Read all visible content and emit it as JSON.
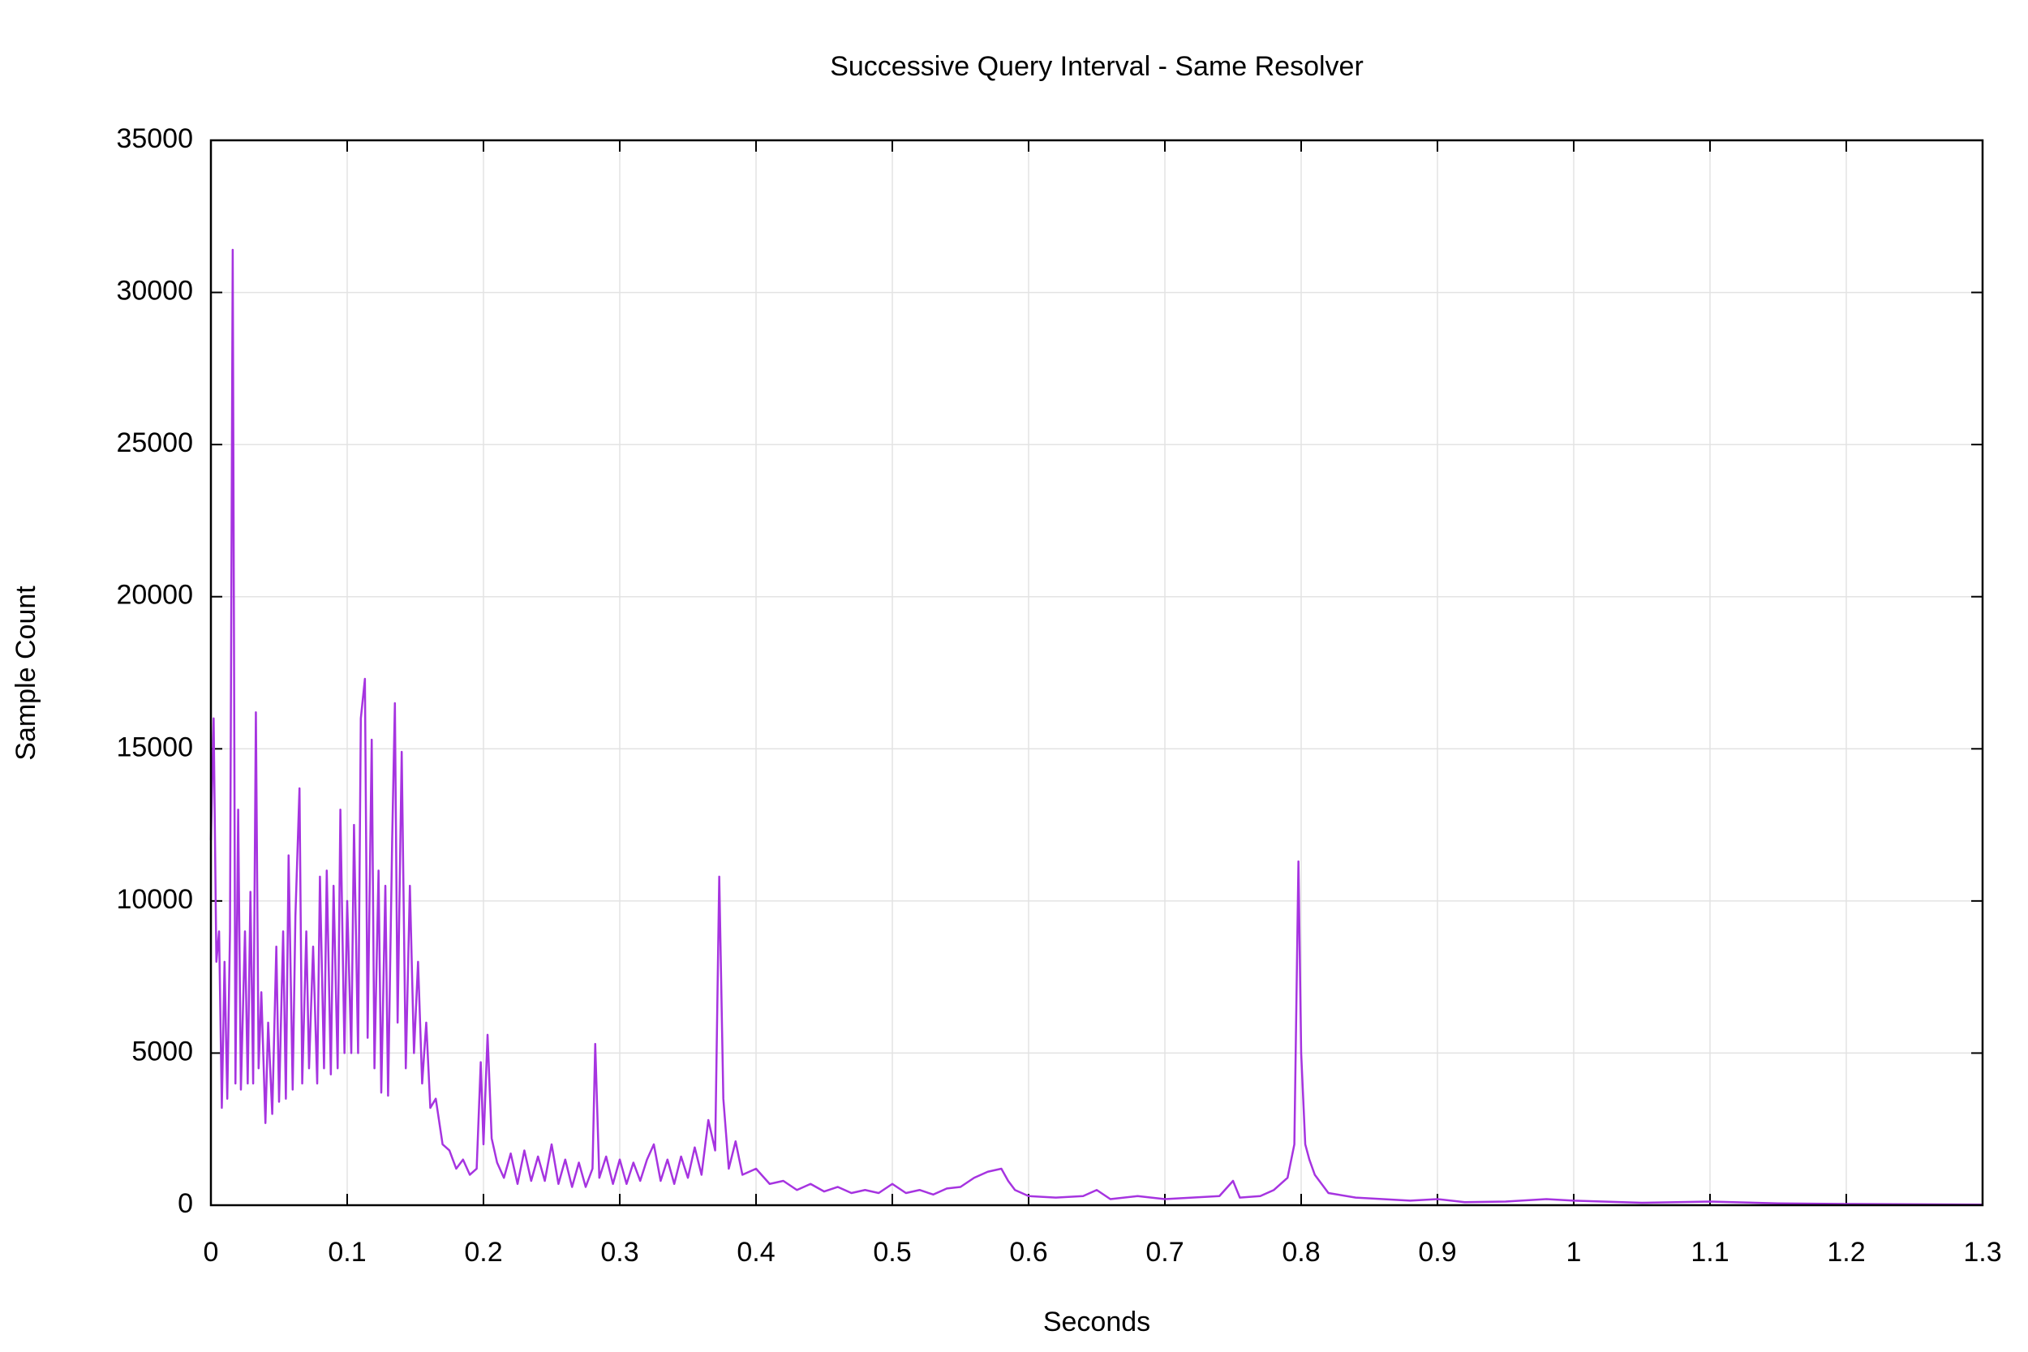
{
  "chart_data": {
    "type": "line",
    "title": "Successive Query Interval - Same Resolver",
    "xlabel": "Seconds",
    "ylabel": "Sample Count",
    "color": "#a634e0",
    "grid": true,
    "xlim": [
      0,
      1.3
    ],
    "ylim": [
      0,
      35000
    ],
    "xticks": [
      0,
      0.1,
      0.2,
      0.3,
      0.4,
      0.5,
      0.6,
      0.7,
      0.8,
      0.9,
      1,
      1.1,
      1.2,
      1.3
    ],
    "yticks": [
      0,
      5000,
      10000,
      15000,
      20000,
      25000,
      30000,
      35000
    ],
    "x": [
      0,
      0.002,
      0.004,
      0.006,
      0.008,
      0.01,
      0.012,
      0.014,
      0.016,
      0.018,
      0.02,
      0.022,
      0.025,
      0.027,
      0.029,
      0.031,
      0.033,
      0.035,
      0.037,
      0.04,
      0.042,
      0.045,
      0.048,
      0.05,
      0.053,
      0.055,
      0.057,
      0.06,
      0.062,
      0.065,
      0.067,
      0.07,
      0.072,
      0.075,
      0.078,
      0.08,
      0.083,
      0.085,
      0.088,
      0.09,
      0.093,
      0.095,
      0.098,
      0.1,
      0.103,
      0.105,
      0.108,
      0.11,
      0.113,
      0.115,
      0.118,
      0.12,
      0.123,
      0.125,
      0.128,
      0.13,
      0.133,
      0.135,
      0.137,
      0.14,
      0.143,
      0.146,
      0.149,
      0.152,
      0.155,
      0.158,
      0.161,
      0.165,
      0.17,
      0.175,
      0.18,
      0.185,
      0.19,
      0.195,
      0.198,
      0.2,
      0.203,
      0.206,
      0.21,
      0.215,
      0.22,
      0.225,
      0.23,
      0.235,
      0.24,
      0.245,
      0.25,
      0.255,
      0.26,
      0.265,
      0.27,
      0.275,
      0.28,
      0.282,
      0.285,
      0.29,
      0.295,
      0.3,
      0.305,
      0.31,
      0.315,
      0.32,
      0.325,
      0.33,
      0.335,
      0.34,
      0.345,
      0.35,
      0.355,
      0.36,
      0.365,
      0.37,
      0.373,
      0.376,
      0.38,
      0.385,
      0.39,
      0.4,
      0.41,
      0.42,
      0.43,
      0.44,
      0.45,
      0.46,
      0.47,
      0.48,
      0.49,
      0.5,
      0.51,
      0.52,
      0.53,
      0.54,
      0.55,
      0.56,
      0.57,
      0.58,
      0.585,
      0.59,
      0.6,
      0.62,
      0.64,
      0.65,
      0.66,
      0.68,
      0.7,
      0.72,
      0.74,
      0.75,
      0.755,
      0.77,
      0.78,
      0.79,
      0.795,
      0.798,
      0.8,
      0.803,
      0.806,
      0.81,
      0.82,
      0.84,
      0.86,
      0.88,
      0.9,
      0.92,
      0.95,
      0.98,
      1.0,
      1.05,
      1.1,
      1.15,
      1.2,
      1.25,
      1.3
    ],
    "values": [
      12000,
      16000,
      8000,
      9000,
      3200,
      8000,
      3500,
      9000,
      31400,
      4000,
      13000,
      3800,
      9000,
      4000,
      10300,
      4000,
      16200,
      4500,
      7000,
      2700,
      6000,
      3000,
      8500,
      3400,
      9000,
      3500,
      11500,
      3800,
      9500,
      13700,
      4000,
      9000,
      4500,
      8500,
      4000,
      10800,
      4500,
      11000,
      4300,
      10500,
      4500,
      13000,
      5000,
      10000,
      5000,
      12500,
      5000,
      16000,
      17300,
      5500,
      15300,
      4500,
      11000,
      3700,
      10500,
      3600,
      12000,
      16500,
      6000,
      14900,
      4500,
      10500,
      5000,
      8000,
      4000,
      6000,
      3200,
      3500,
      2000,
      1800,
      1200,
      1500,
      1000,
      1200,
      4700,
      2000,
      5600,
      2200,
      1400,
      900,
      1700,
      700,
      1800,
      800,
      1600,
      800,
      2000,
      700,
      1500,
      600,
      1400,
      600,
      1200,
      5300,
      900,
      1600,
      700,
      1500,
      700,
      1400,
      800,
      1500,
      2000,
      800,
      1500,
      700,
      1600,
      900,
      1900,
      1000,
      2800,
      1800,
      10800,
      3500,
      1200,
      2100,
      1000,
      1200,
      700,
      800,
      500,
      700,
      450,
      600,
      400,
      500,
      400,
      700,
      400,
      500,
      350,
      550,
      600,
      900,
      1100,
      1200,
      800,
      500,
      300,
      250,
      300,
      500,
      200,
      300,
      200,
      250,
      300,
      800,
      250,
      300,
      500,
      900,
      2000,
      11300,
      5000,
      2000,
      1500,
      1000,
      400,
      250,
      200,
      150,
      200,
      100,
      120,
      200,
      150,
      80,
      120,
      60,
      40,
      30,
      20
    ]
  }
}
